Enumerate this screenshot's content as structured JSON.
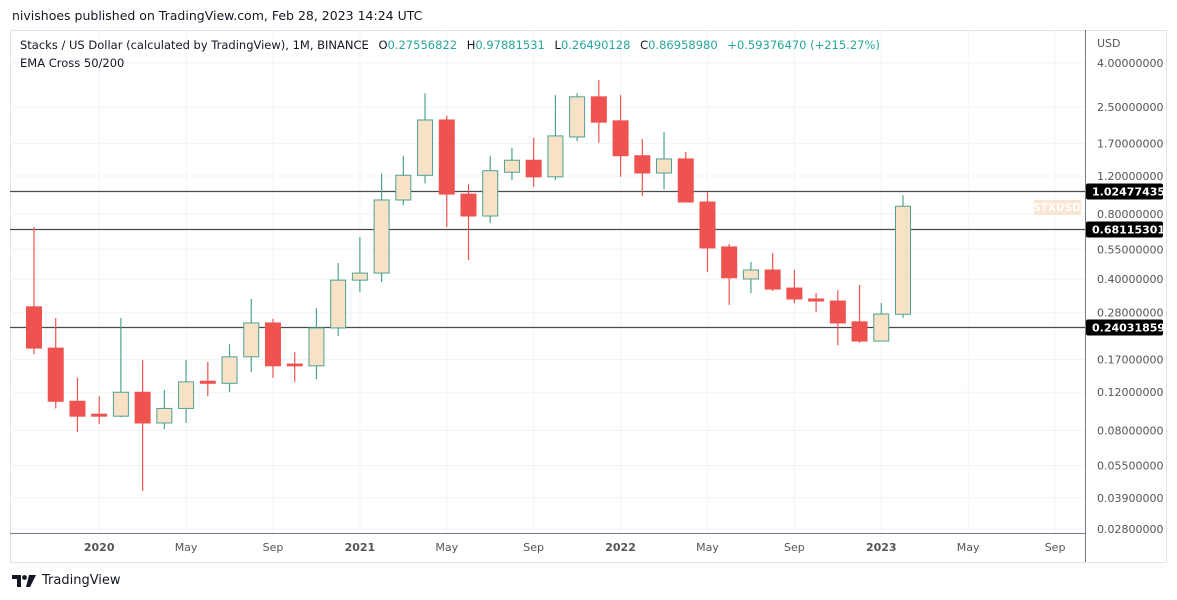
{
  "header": {
    "published": "nivishoes published on TradingView.com, Feb 28, 2023 14:24 UTC",
    "symbol": "Stacks / US Dollar (calculated by TradingView), 1M, BINANCE",
    "o_label": "O",
    "o_value": "0.27556822",
    "h_label": "H",
    "h_value": "0.97881531",
    "l_label": "L",
    "l_value": "0.26490128",
    "c_label": "C",
    "c_value": "0.86958980",
    "change": "+0.59376470 (+215.27%)",
    "indicator": "EMA Cross 50/200"
  },
  "footer": {
    "brand": "TradingView",
    "logo_icon": "tradingview-logo-icon"
  },
  "colors": {
    "up_body": "#f8e2c6",
    "up_border": "#4fa292",
    "down": "#ef5350",
    "value_text": "#26a69a"
  },
  "chart_data": {
    "type": "candlestick",
    "symbol_tag": "STXUSD",
    "currency": "USD",
    "scale": "log",
    "ylim": [
      0.026,
      4.4
    ],
    "grid": true,
    "y_ticks": [
      "4.00000000",
      "2.50000000",
      "1.70000000",
      "1.20000000",
      "0.80000000",
      "0.55000000",
      "0.40000000",
      "0.28000000",
      "0.17000000",
      "0.12000000",
      "0.08000000",
      "0.05500000",
      "0.03900000",
      "0.02800000"
    ],
    "x_ticks": [
      {
        "label": "2020",
        "month": "2020-01",
        "bold": true
      },
      {
        "label": "May",
        "month": "2020-05"
      },
      {
        "label": "Sep",
        "month": "2020-09"
      },
      {
        "label": "2021",
        "month": "2021-01",
        "bold": true
      },
      {
        "label": "May",
        "month": "2021-05"
      },
      {
        "label": "Sep",
        "month": "2021-09"
      },
      {
        "label": "2022",
        "month": "2022-01",
        "bold": true
      },
      {
        "label": "May",
        "month": "2022-05"
      },
      {
        "label": "Sep",
        "month": "2022-09"
      },
      {
        "label": "2023",
        "month": "2023-01",
        "bold": true
      },
      {
        "label": "May",
        "month": "2023-05"
      },
      {
        "label": "Sep",
        "month": "2023-09"
      }
    ],
    "horizontal_lines": [
      {
        "price": 1.02477435,
        "label": "1.02477435"
      },
      {
        "price": 0.68115301,
        "label": "0.68115301"
      },
      {
        "price": 0.24031859,
        "label": "0.24031859"
      }
    ],
    "first_month": "2019-10",
    "candles": [
      {
        "month": "2019-10",
        "o": 0.298,
        "h": 0.697,
        "l": 0.18,
        "c": 0.192
      },
      {
        "month": "2019-11",
        "o": 0.192,
        "h": 0.265,
        "l": 0.101,
        "c": 0.109
      },
      {
        "month": "2019-12",
        "o": 0.109,
        "h": 0.14,
        "l": 0.0786,
        "c": 0.093
      },
      {
        "month": "2020-01",
        "o": 0.095,
        "h": 0.115,
        "l": 0.0855,
        "c": 0.093
      },
      {
        "month": "2020-02",
        "o": 0.093,
        "h": 0.265,
        "l": 0.092,
        "c": 0.12
      },
      {
        "month": "2020-03",
        "o": 0.12,
        "h": 0.169,
        "l": 0.042,
        "c": 0.0865
      },
      {
        "month": "2020-04",
        "o": 0.0865,
        "h": 0.123,
        "l": 0.081,
        "c": 0.101
      },
      {
        "month": "2020-05",
        "o": 0.101,
        "h": 0.169,
        "l": 0.0865,
        "c": 0.134
      },
      {
        "month": "2020-06",
        "o": 0.135,
        "h": 0.166,
        "l": 0.115,
        "c": 0.132
      },
      {
        "month": "2020-07",
        "o": 0.132,
        "h": 0.2,
        "l": 0.12,
        "c": 0.175
      },
      {
        "month": "2020-08",
        "o": 0.175,
        "h": 0.324,
        "l": 0.149,
        "c": 0.251
      },
      {
        "month": "2020-09",
        "o": 0.251,
        "h": 0.262,
        "l": 0.14,
        "c": 0.159
      },
      {
        "month": "2020-10",
        "o": 0.162,
        "h": 0.184,
        "l": 0.134,
        "c": 0.159
      },
      {
        "month": "2020-11",
        "o": 0.159,
        "h": 0.294,
        "l": 0.138,
        "c": 0.238
      },
      {
        "month": "2020-12",
        "o": 0.238,
        "h": 0.475,
        "l": 0.218,
        "c": 0.396
      },
      {
        "month": "2021-01",
        "o": 0.396,
        "h": 0.627,
        "l": 0.349,
        "c": 0.427
      },
      {
        "month": "2021-02",
        "o": 0.427,
        "h": 1.23,
        "l": 0.388,
        "c": 0.93
      },
      {
        "month": "2021-03",
        "o": 0.93,
        "h": 1.49,
        "l": 0.88,
        "c": 1.21
      },
      {
        "month": "2021-04",
        "o": 1.21,
        "h": 2.9,
        "l": 1.11,
        "c": 2.18
      },
      {
        "month": "2021-05",
        "o": 2.18,
        "h": 2.28,
        "l": 0.697,
        "c": 0.99
      },
      {
        "month": "2021-06",
        "o": 0.99,
        "h": 1.1,
        "l": 0.491,
        "c": 0.784
      },
      {
        "month": "2021-07",
        "o": 0.784,
        "h": 1.49,
        "l": 0.728,
        "c": 1.27
      },
      {
        "month": "2021-08",
        "o": 1.25,
        "h": 1.62,
        "l": 1.15,
        "c": 1.42
      },
      {
        "month": "2021-09",
        "o": 1.42,
        "h": 1.8,
        "l": 1.07,
        "c": 1.19
      },
      {
        "month": "2021-10",
        "o": 1.19,
        "h": 2.84,
        "l": 1.15,
        "c": 1.84
      },
      {
        "month": "2021-11",
        "o": 1.82,
        "h": 2.9,
        "l": 1.74,
        "c": 2.79
      },
      {
        "month": "2021-12",
        "o": 2.79,
        "h": 3.34,
        "l": 1.71,
        "c": 2.13
      },
      {
        "month": "2022-01",
        "o": 2.16,
        "h": 2.84,
        "l": 1.19,
        "c": 1.49
      },
      {
        "month": "2022-02",
        "o": 1.49,
        "h": 1.78,
        "l": 0.97,
        "c": 1.24
      },
      {
        "month": "2022-03",
        "o": 1.24,
        "h": 1.92,
        "l": 1.04,
        "c": 1.44
      },
      {
        "month": "2022-04",
        "o": 1.44,
        "h": 1.55,
        "l": 0.91,
        "c": 0.91
      },
      {
        "month": "2022-05",
        "o": 0.91,
        "h": 1.01,
        "l": 0.432,
        "c": 0.558
      },
      {
        "month": "2022-06",
        "o": 0.564,
        "h": 0.582,
        "l": 0.304,
        "c": 0.406
      },
      {
        "month": "2022-07",
        "o": 0.401,
        "h": 0.481,
        "l": 0.345,
        "c": 0.441
      },
      {
        "month": "2022-08",
        "o": 0.441,
        "h": 0.528,
        "l": 0.353,
        "c": 0.36
      },
      {
        "month": "2022-09",
        "o": 0.364,
        "h": 0.441,
        "l": 0.31,
        "c": 0.324
      },
      {
        "month": "2022-10",
        "o": 0.324,
        "h": 0.345,
        "l": 0.282,
        "c": 0.317
      },
      {
        "month": "2022-11",
        "o": 0.317,
        "h": 0.356,
        "l": 0.198,
        "c": 0.251
      },
      {
        "month": "2022-12",
        "o": 0.254,
        "h": 0.376,
        "l": 0.203,
        "c": 0.207
      },
      {
        "month": "2023-01",
        "o": 0.207,
        "h": 0.31,
        "l": 0.207,
        "c": 0.276
      },
      {
        "month": "2023-02",
        "o": 0.27556822,
        "h": 0.97881531,
        "l": 0.26490128,
        "c": 0.8695898
      }
    ]
  }
}
